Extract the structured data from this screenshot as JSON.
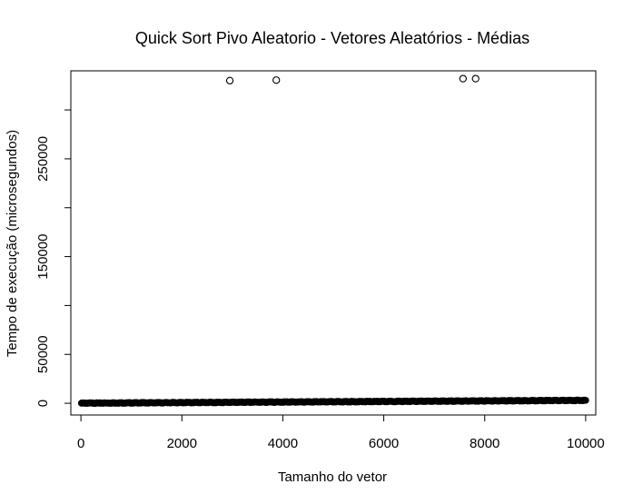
{
  "chart_data": {
    "type": "scatter",
    "title": "Quick Sort Pivo Aleatorio - Vetores Aleatórios - Médias",
    "xlabel": "Tamanho do vetor",
    "ylabel": "Tempo de execução (microsegundos)",
    "xlim": [
      -200,
      10200
    ],
    "ylim": [
      -12000,
      340000
    ],
    "xticks": [
      0,
      2000,
      4000,
      6000,
      8000,
      10000
    ],
    "xtick_labels": [
      "0",
      "2000",
      "4000",
      "6000",
      "8000",
      "10000"
    ],
    "yticks": [
      0,
      50000,
      100000,
      150000,
      200000,
      250000,
      300000
    ],
    "ytick_labels": [
      "0",
      "50000",
      "",
      "150000",
      "",
      "250000",
      ""
    ],
    "grid": false,
    "marker": "open-circle",
    "colors": {
      "points": "#000000",
      "axes": "#000000",
      "background": "#ffffff"
    },
    "dense_series": {
      "x_start": 10,
      "x_end": 10000,
      "x_step": 10,
      "y_start": 100,
      "y_end": 3000,
      "note_visible": ""
    },
    "outliers": [
      {
        "x": 2950,
        "y": 330000
      },
      {
        "x": 3870,
        "y": 330500
      },
      {
        "x": 7570,
        "y": 332000
      },
      {
        "x": 7820,
        "y": 332000
      }
    ]
  }
}
